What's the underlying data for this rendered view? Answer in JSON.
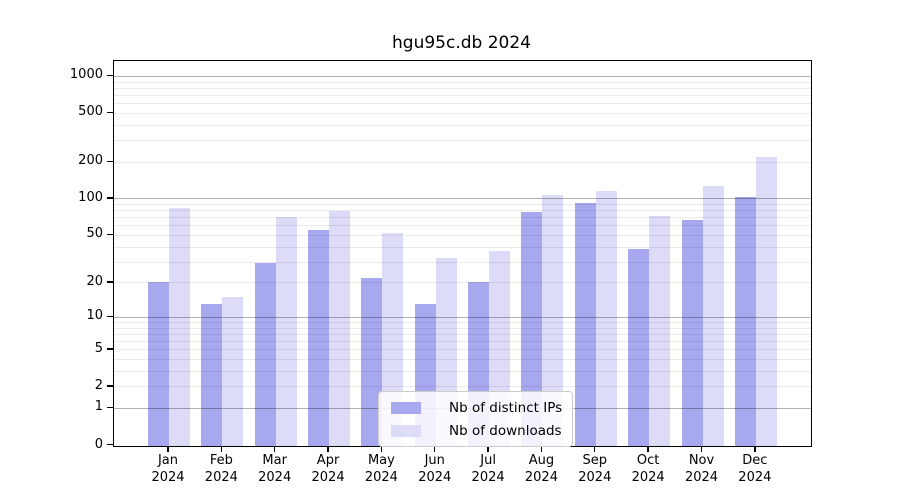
{
  "title": "hgu95c.db 2024",
  "colors": {
    "ips_bar": "#a8a8ef",
    "downloads_bar": "#dcdcf8",
    "axis": "#000000",
    "grid_decade": "rgba(0,0,0,0.30)",
    "grid_minor": "rgba(0,0,0,0.08)",
    "legend_border": "#cccccc"
  },
  "chart_data": {
    "type": "bar",
    "title": "hgu95c.db 2024",
    "categories": [
      "Jan",
      "Feb",
      "Mar",
      "Apr",
      "May",
      "Jun",
      "Jul",
      "Aug",
      "Sep",
      "Oct",
      "Nov",
      "Dec"
    ],
    "year_label": "2024",
    "series": [
      {
        "name": "Nb of distinct IPs",
        "values": [
          20,
          13,
          29,
          55,
          22,
          13,
          20,
          78,
          92,
          38,
          67,
          103
        ]
      },
      {
        "name": "Nb of downloads",
        "values": [
          84,
          15,
          71,
          79,
          52,
          32,
          37,
          107,
          116,
          72,
          126,
          217
        ]
      }
    ],
    "y_scale": "log10(1+x)",
    "y_ticks": [
      0,
      1,
      2,
      5,
      10,
      20,
      50,
      100,
      200,
      500,
      1000
    ],
    "y_minor": [
      3,
      4,
      6,
      7,
      8,
      9,
      30,
      40,
      60,
      70,
      80,
      90,
      300,
      400,
      600,
      700,
      800,
      900
    ],
    "y_decades": [
      1,
      10,
      100,
      1000
    ],
    "ylim_top_log1p": 3.122,
    "xlabel": "",
    "ylabel": "",
    "grid": true,
    "legend_position": "lower center"
  }
}
